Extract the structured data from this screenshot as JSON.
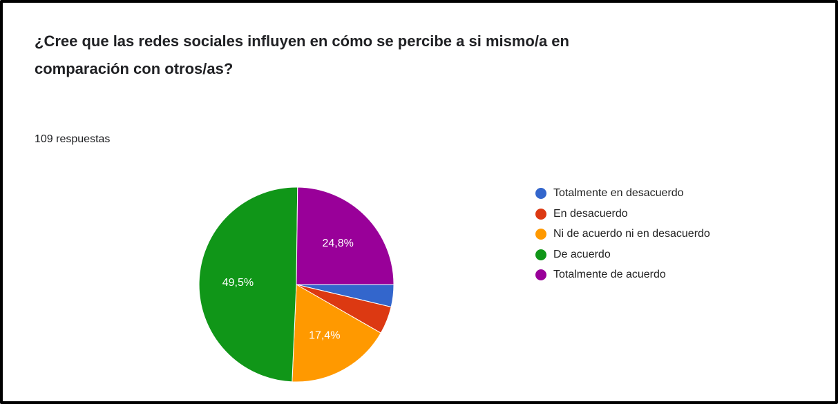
{
  "header": {
    "question": "¿Cree que las redes sociales influyen en cómo se percibe a si mismo/a en comparación con otros/as?",
    "responses": "109 respuestas"
  },
  "chart_data": {
    "type": "pie",
    "title": "¿Cree que las redes sociales influyen en cómo se percibe a si mismo/a en comparación con otros/as?",
    "total_responses": 109,
    "categories": [
      "Totalmente en desacuerdo",
      "En desacuerdo",
      "Ni de acuerdo ni en desacuerdo",
      "De acuerdo",
      "Totalmente de acuerdo"
    ],
    "values": [
      3.7,
      4.6,
      17.4,
      49.5,
      24.8
    ],
    "slice_labels": [
      "",
      "",
      "17,4%",
      "49,5%",
      "24,8%"
    ],
    "colors": [
      "#3366cc",
      "#dc3912",
      "#ff9900",
      "#109618",
      "#990099"
    ],
    "legend_position": "right",
    "start_angle": "3 o'clock, clockwise"
  }
}
